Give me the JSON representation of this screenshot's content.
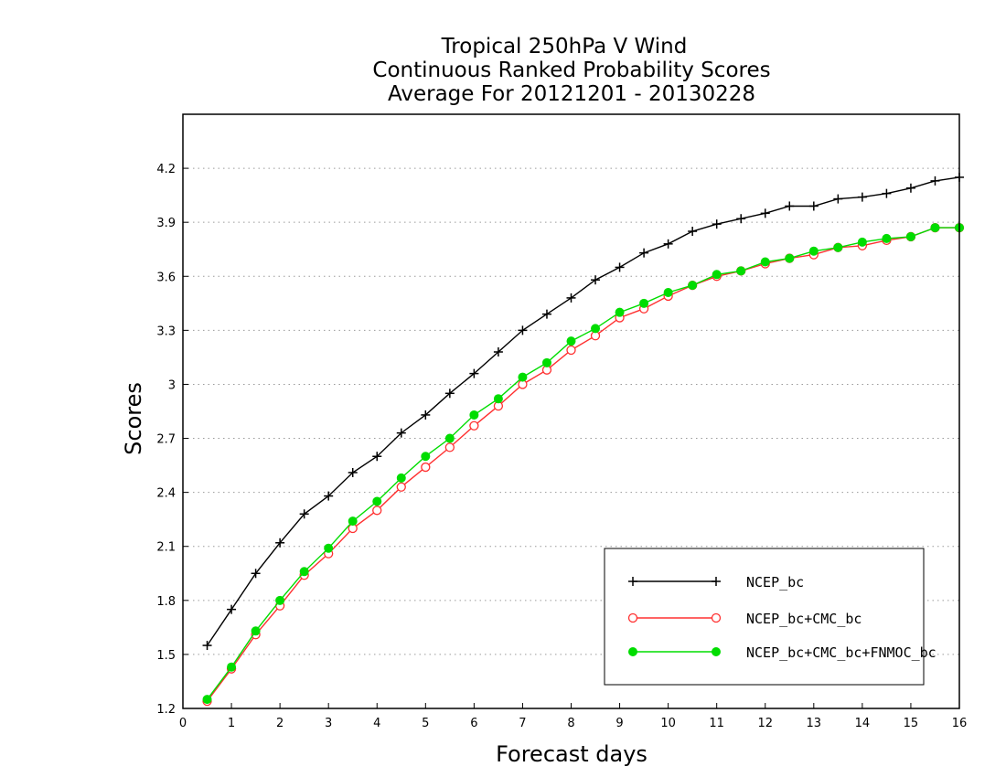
{
  "chart_data": {
    "type": "line",
    "title": [
      "Tropical 250hPa V Wind",
      "Continuous Ranked Probability Scores",
      "Average For 20121201 - 20130228"
    ],
    "xlabel": "Forecast days",
    "ylabel": "Scores",
    "xlim": [
      0,
      16
    ],
    "ylim": [
      1.2,
      4.5
    ],
    "x_ticks": [
      "0",
      "1",
      "2",
      "3",
      "4",
      "5",
      "6",
      "7",
      "8",
      "9",
      "10",
      "11",
      "12",
      "13",
      "14",
      "15",
      "16"
    ],
    "y_ticks": [
      "1.2",
      "1.5",
      "1.8",
      "2.1",
      "2.4",
      "2.7",
      "3",
      "3.3",
      "3.6",
      "3.9",
      "4.2"
    ],
    "grid": "horizontal dotted",
    "legend_position": "bottom-right",
    "x": [
      0.5,
      1,
      1.5,
      2,
      2.5,
      3,
      3.5,
      4,
      4.5,
      5,
      5.5,
      6,
      6.5,
      7,
      7.5,
      8,
      8.5,
      9,
      9.5,
      10,
      10.5,
      11,
      11.5,
      12,
      12.5,
      13,
      13.5,
      14,
      14.5,
      15,
      15.5,
      16
    ],
    "series": [
      {
        "name": "NCEP_bc",
        "color": "#000000",
        "marker": "plus",
        "values": [
          1.55,
          1.75,
          1.95,
          2.12,
          2.28,
          2.38,
          2.51,
          2.6,
          2.73,
          2.83,
          2.95,
          3.06,
          3.18,
          3.3,
          3.39,
          3.48,
          3.58,
          3.65,
          3.73,
          3.78,
          3.85,
          3.89,
          3.92,
          3.95,
          3.99,
          3.99,
          4.03,
          4.04,
          4.06,
          4.09,
          4.13,
          4.15
        ]
      },
      {
        "name": "NCEP_bc+CMC_bc",
        "color": "#ff3030",
        "marker": "open-circle",
        "values": [
          1.24,
          1.42,
          1.61,
          1.77,
          1.94,
          2.06,
          2.2,
          2.3,
          2.43,
          2.54,
          2.65,
          2.77,
          2.88,
          3.0,
          3.08,
          3.19,
          3.27,
          3.37,
          3.42,
          3.49,
          3.55,
          3.6,
          3.63,
          3.67,
          3.7,
          3.72,
          3.76,
          3.77,
          3.8,
          3.82,
          3.87,
          3.87
        ]
      },
      {
        "name": "NCEP_bc+CMC_bc+FNMOC_bc",
        "color": "#00dd00",
        "marker": "filled-circle",
        "values": [
          1.25,
          1.43,
          1.63,
          1.8,
          1.96,
          2.09,
          2.24,
          2.35,
          2.48,
          2.6,
          2.7,
          2.83,
          2.92,
          3.04,
          3.12,
          3.24,
          3.31,
          3.4,
          3.45,
          3.51,
          3.55,
          3.61,
          3.63,
          3.68,
          3.7,
          3.74,
          3.76,
          3.79,
          3.81,
          3.82,
          3.87,
          3.87
        ]
      }
    ]
  }
}
